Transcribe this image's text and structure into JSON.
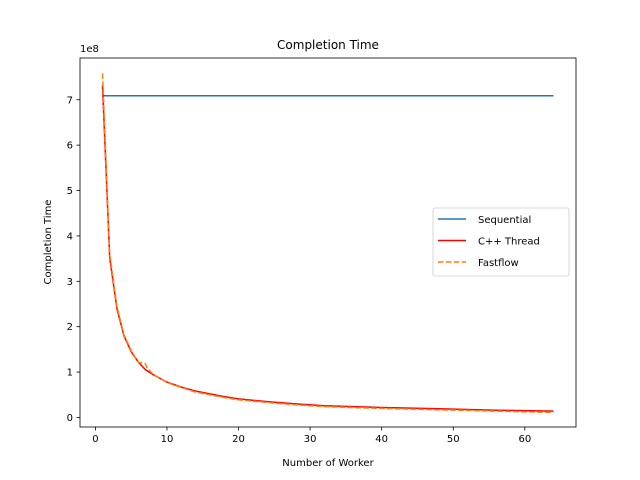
{
  "chart_data": {
    "type": "line",
    "title": "Completion Time",
    "xlabel": "Number of Worker",
    "ylabel": "Completion Time",
    "y_offset_label": "1e8",
    "xlim": [
      -2.15,
      67.15
    ],
    "ylim": [
      -0.21,
      7.92
    ],
    "x_ticks": [
      0,
      10,
      20,
      30,
      40,
      50,
      60
    ],
    "y_ticks": [
      0,
      1,
      2,
      3,
      4,
      5,
      6,
      7
    ],
    "x_tick_labels": [
      "0",
      "10",
      "20",
      "30",
      "40",
      "50",
      "60"
    ],
    "y_tick_labels": [
      "0",
      "1",
      "2",
      "3",
      "4",
      "5",
      "6",
      "7"
    ],
    "grid": false,
    "legend_position": "center-right",
    "series": [
      {
        "name": "Sequential",
        "color": "#1f77b4",
        "style": "solid",
        "x": [
          1,
          64
        ],
        "y": [
          7.09,
          7.09
        ]
      },
      {
        "name": "C++ Thread",
        "color": "#ff0000",
        "style": "solid",
        "x": [
          1,
          2,
          3,
          4,
          5,
          6,
          7,
          8,
          10,
          12,
          14,
          16,
          18,
          20,
          24,
          28,
          32,
          40,
          48,
          56,
          64
        ],
        "y": [
          7.32,
          3.52,
          2.4,
          1.8,
          1.45,
          1.22,
          1.05,
          0.95,
          0.78,
          0.67,
          0.58,
          0.52,
          0.46,
          0.41,
          0.35,
          0.3,
          0.26,
          0.22,
          0.19,
          0.16,
          0.14
        ]
      },
      {
        "name": "Fastflow",
        "color": "#ff7f0e",
        "style": "dashed",
        "x": [
          1,
          2,
          3,
          4,
          5,
          6,
          7,
          7.2,
          8,
          10,
          12,
          14,
          16,
          18,
          20,
          24,
          28,
          32,
          40,
          48,
          56,
          64
        ],
        "y": [
          7.58,
          3.6,
          2.45,
          1.82,
          1.47,
          1.22,
          1.18,
          1.1,
          0.96,
          0.77,
          0.66,
          0.56,
          0.5,
          0.44,
          0.39,
          0.33,
          0.28,
          0.24,
          0.2,
          0.17,
          0.14,
          0.11
        ]
      }
    ]
  }
}
